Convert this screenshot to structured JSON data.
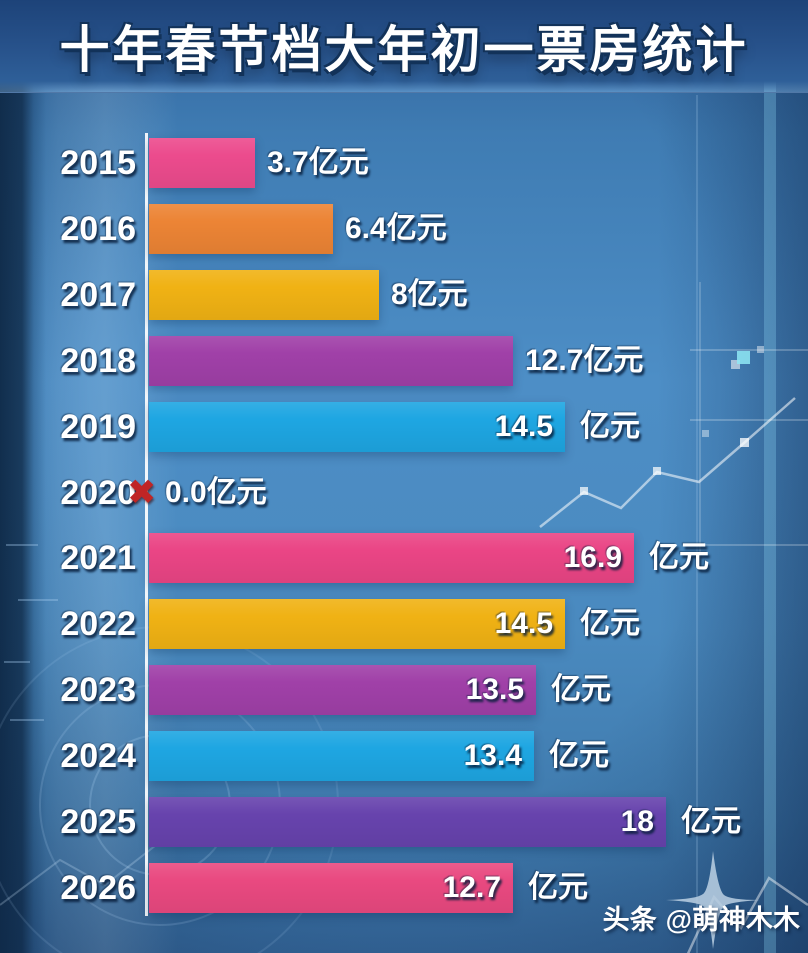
{
  "title": "十年春节档大年初一票房统计",
  "watermark": {
    "brand": "头条",
    "handle": "@萌神木木"
  },
  "chart_data": {
    "type": "bar",
    "orientation": "horizontal",
    "title": "十年春节档大年初一票房统计",
    "unit": "亿元",
    "xlim": [
      0,
      18
    ],
    "grid": false,
    "legend": "none",
    "categories": [
      "2015",
      "2016",
      "2017",
      "2018",
      "2019",
      "2020",
      "2021",
      "2022",
      "2023",
      "2024",
      "2025",
      "2026"
    ],
    "values": [
      3.7,
      6.4,
      8,
      12.7,
      14.5,
      0.0,
      16.9,
      14.5,
      13.5,
      13.4,
      18,
      12.7
    ],
    "value_labels": [
      "3.7亿元",
      "6.4亿元",
      "8亿元",
      "12.7亿元",
      "14.5 亿元",
      "0.0亿元",
      "16.9 亿元",
      "14.5 亿元",
      "13.5 亿元",
      "13.4 亿元",
      "18 亿元",
      "12.7 亿元"
    ],
    "number_labels": [
      "3.7",
      "6.4",
      "8",
      "12.7",
      "14.5",
      "0.0",
      "16.9",
      "14.5",
      "13.5",
      "13.4",
      "18",
      "12.7"
    ],
    "label_styles": [
      "outside",
      "outside",
      "outside",
      "outside",
      "split",
      "zero",
      "split",
      "split",
      "split",
      "split",
      "split",
      "split"
    ],
    "bar_colors": [
      "#ec4b8d",
      "#ec8435",
      "#f0b214",
      "#a040a8",
      "#1ea6e2",
      null,
      "#ea4585",
      "#f0b214",
      "#a040a8",
      "#1ea6e2",
      "#6743ad",
      "#e94980"
    ],
    "zero_marker": {
      "category": "2020",
      "symbol": "✖",
      "color": "#c02525",
      "meaning": "no releases"
    }
  }
}
